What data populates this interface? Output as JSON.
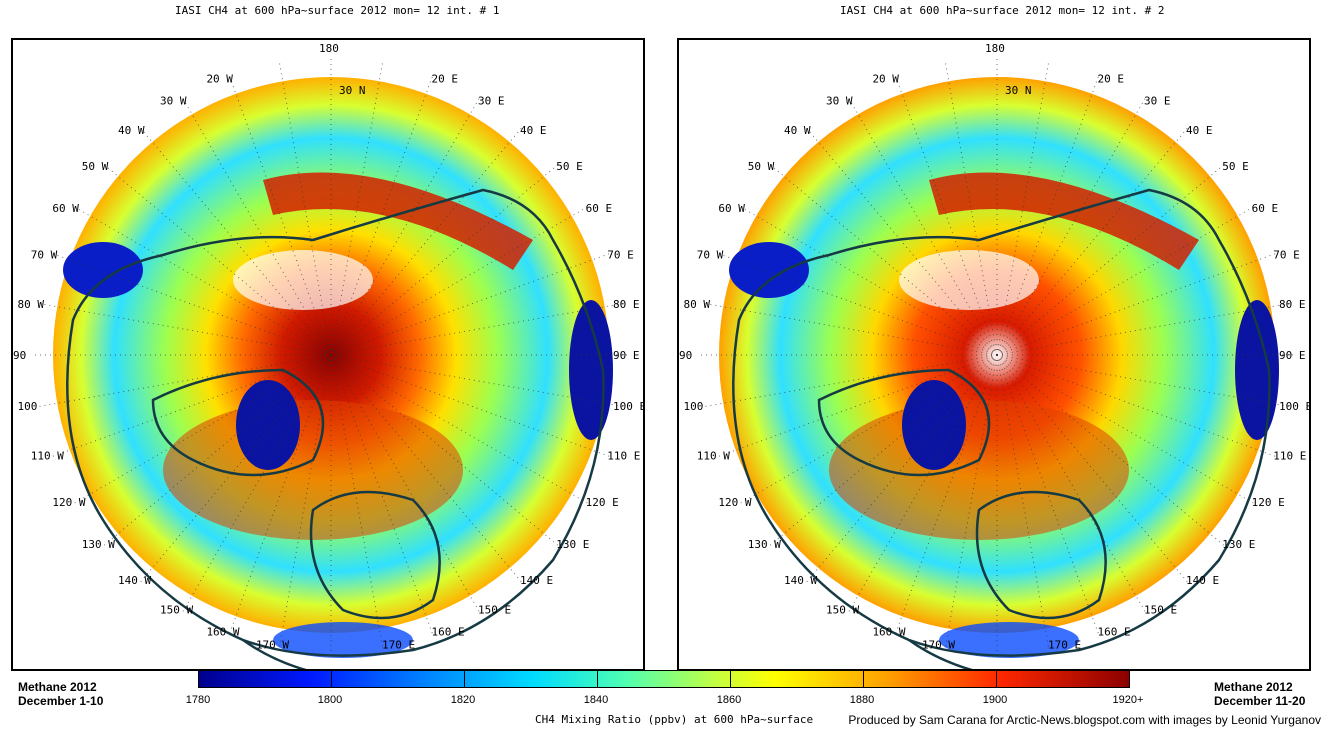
{
  "maps": [
    {
      "title": "IASI CH4 at 600 hPa~surface 2012 mon= 12 int. # 1",
      "caption": [
        "Methane 2012",
        "December 1-10"
      ]
    },
    {
      "title": "IASI CH4 at 600 hPa~surface 2012 mon= 12 int. # 2",
      "caption": [
        "Methane  2012",
        "December 11-20"
      ]
    }
  ],
  "meridian_labels": {
    "west": [
      "20  W",
      "30  W",
      "40  W",
      "50  W",
      "60  W",
      "70  W",
      "80  W",
      "90",
      "100",
      "110  W",
      "120  W",
      "130  W",
      "140  W",
      "150  W",
      "160  W",
      "170  W"
    ],
    "east": [
      "20  E",
      "30  E",
      "40  E",
      "50  E",
      "60  E",
      "70  E",
      "80  E",
      "90  E",
      "100  E",
      "110  E",
      "120  E",
      "130  E",
      "140  E",
      "150  E",
      "160  E",
      "170  E"
    ],
    "top": "180",
    "lat": "30  N"
  },
  "colorbar": {
    "ticks": [
      "1780",
      "1800",
      "1820",
      "1840",
      "1860",
      "1880",
      "1900",
      "1920+"
    ],
    "label": "CH4 Mixing Ratio (ppbv) at 600 hPa~surface",
    "colors": [
      "#00008c",
      "#0019ff",
      "#0080ff",
      "#00dcff",
      "#50ffb0",
      "#c8ff3c",
      "#ffff00",
      "#ffa000",
      "#ff2800",
      "#8c0000"
    ]
  },
  "credit": "Produced by Sam Carana for Arctic-News.blogspot.com with images by Leonid Yurganov"
}
